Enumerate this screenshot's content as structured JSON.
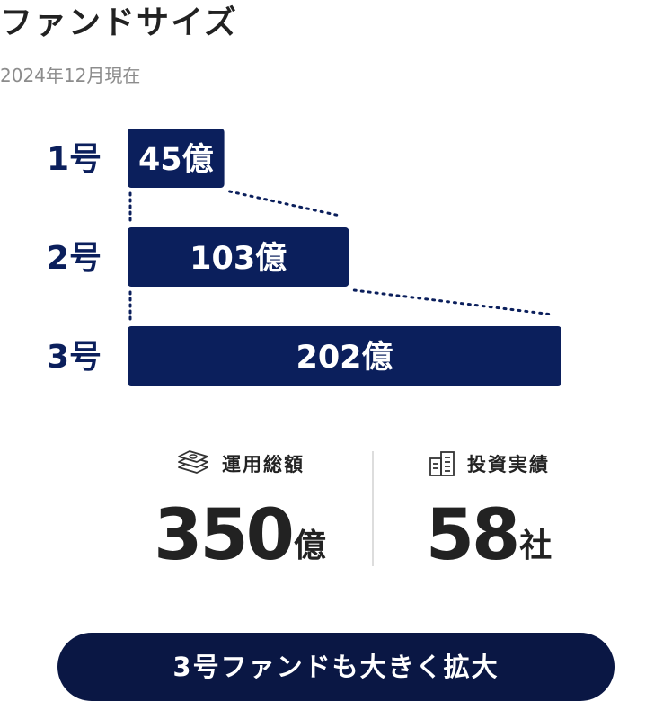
{
  "header": {
    "title": "ファンドサイズ",
    "subtitle": "2024年12月現在"
  },
  "colors": {
    "bar": "#0b1f5c",
    "label": "#0b1f5c",
    "text": "#222222",
    "muted": "#8c8c8c",
    "button": "#0a1744"
  },
  "chart_data": {
    "type": "bar",
    "orientation": "horizontal",
    "title": "ファンドサイズ",
    "subtitle": "2024年12月現在",
    "categories": [
      "1号",
      "2号",
      "3号"
    ],
    "values": [
      45,
      103,
      202
    ],
    "value_labels": [
      "45億",
      "103億",
      "202億"
    ],
    "unit": "億",
    "xlim": [
      0,
      202
    ],
    "grid": false,
    "legend": "none",
    "connectors": "dotted"
  },
  "stats": {
    "aum": {
      "label": "運用総額",
      "value": "350",
      "unit": "億",
      "icon": "money-stack-icon"
    },
    "investments": {
      "label": "投資実績",
      "value": "58",
      "unit": "社",
      "icon": "building-icon"
    }
  },
  "cta": {
    "label": "3号ファンドも大きく拡大"
  }
}
